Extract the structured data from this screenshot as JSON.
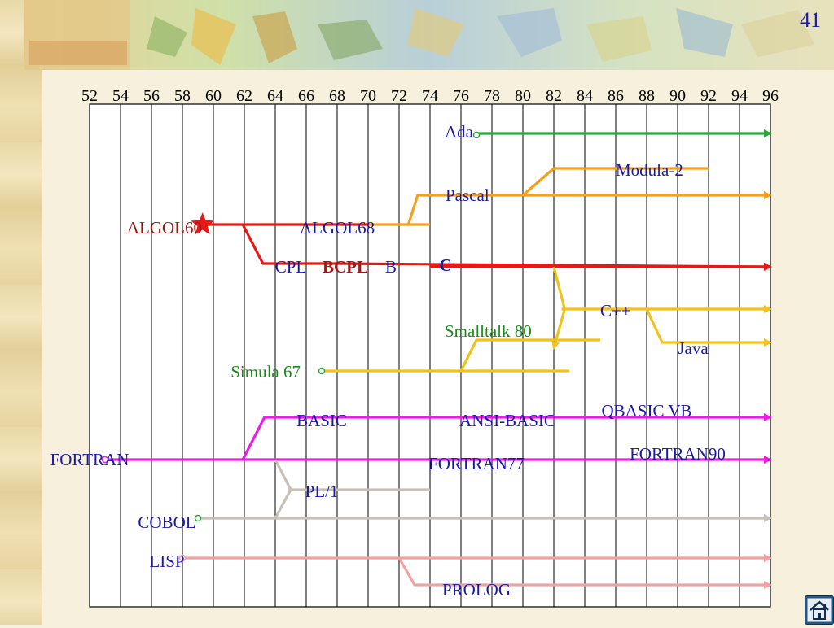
{
  "slide": {
    "page_number": "41"
  },
  "years": [
    "52",
    "54",
    "56",
    "58",
    "60",
    "62",
    "64",
    "66",
    "68",
    "70",
    "72",
    "74",
    "76",
    "78",
    "80",
    "82",
    "84",
    "86",
    "88",
    "90",
    "92",
    "94",
    "96"
  ],
  "colors": {
    "green": "#2aa63a",
    "orange": "#f5a01a",
    "red": "#e81818",
    "yellow": "#f2c21a",
    "magenta": "#f01ae8",
    "gray": "#c8c0b4",
    "pink": "#f4a0a0",
    "label_blue": "#1a1aaa",
    "label_darkred": "#a01818",
    "label_green": "#1a8a1a",
    "grid": "#000000"
  },
  "languages": [
    {
      "id": "ada",
      "text": "Ada",
      "color": "label_blue",
      "year": 77,
      "row": 164,
      "anchor": "end",
      "dx": -4,
      "dy": -2
    },
    {
      "id": "modula-2",
      "text": "Modula-2",
      "color": "label_blue",
      "year": 86,
      "row": 207,
      "anchor": "start",
      "dx": 0,
      "dy": 2
    },
    {
      "id": "pascal",
      "text": "Pascal",
      "color": "label_blue",
      "year": 75,
      "row": 240,
      "anchor": "start",
      "dx": 0,
      "dy": 0
    },
    {
      "id": "algol60",
      "text": "ALGOL60",
      "color": "label_darkred",
      "year": 58,
      "row": 278,
      "anchor": "end",
      "dx": 24,
      "dy": 2
    },
    {
      "id": "algol68",
      "text": "ALGOL68",
      "color": "label_blue",
      "year": 68,
      "row": 278,
      "anchor": "middle",
      "dx": 0,
      "dy": 2
    },
    {
      "id": "cpl",
      "text": "CPL",
      "color": "label_blue",
      "year": 65,
      "row": 328,
      "anchor": "middle",
      "dx": 0,
      "dy": 0
    },
    {
      "id": "bcpl",
      "text": "BCPL",
      "color": "label_darkred",
      "year": 68,
      "row": 328,
      "anchor": "middle",
      "dx": 10,
      "dy": 0,
      "bold": true
    },
    {
      "id": "b",
      "text": "B",
      "color": "label_blue",
      "year": 72,
      "row": 328,
      "anchor": "middle",
      "dx": -10,
      "dy": 0
    },
    {
      "id": "c",
      "text": "C",
      "color": "label_blue",
      "year": 75,
      "row": 328,
      "anchor": "middle",
      "dx": 0,
      "dy": -2,
      "bold": true
    },
    {
      "id": "cpp",
      "text": "C++",
      "color": "label_blue",
      "year": 85,
      "row": 380,
      "anchor": "start",
      "dx": 0,
      "dy": 2
    },
    {
      "id": "smalltalk80",
      "text": "Smalltalk 80",
      "color": "label_green",
      "year": 76,
      "row": 405,
      "anchor": "start",
      "dx": -20,
      "dy": 2
    },
    {
      "id": "java",
      "text": "Java",
      "color": "label_blue",
      "year": 91,
      "row": 428,
      "anchor": "middle",
      "dx": 0,
      "dy": 0
    },
    {
      "id": "simula67",
      "text": "Simula 67",
      "color": "label_green",
      "year": 65,
      "row": 455,
      "anchor": "end",
      "dx": 12,
      "dy": 2
    },
    {
      "id": "basic",
      "text": "BASIC",
      "color": "label_blue",
      "year": 67,
      "row": 515,
      "anchor": "middle",
      "dx": 0,
      "dy": 2
    },
    {
      "id": "ansi-basic",
      "text": "ANSI-BASIC",
      "color": "label_blue",
      "year": 79,
      "row": 515,
      "anchor": "middle",
      "dx": 0,
      "dy": 2
    },
    {
      "id": "qbasic-vb",
      "text": "QBASIC  VB",
      "color": "label_blue",
      "year": 88,
      "row": 503,
      "anchor": "middle",
      "dx": 0,
      "dy": 2
    },
    {
      "id": "fortran",
      "text": "FORTRAN",
      "color": "label_blue",
      "year": 52,
      "row": 565,
      "anchor": "middle",
      "dx": 0,
      "dy": 0
    },
    {
      "id": "fortran77",
      "text": "FORTRAN77",
      "color": "label_blue",
      "year": 77,
      "row": 568,
      "anchor": "middle",
      "dx": 0,
      "dy": 2
    },
    {
      "id": "fortran90",
      "text": "FORTRAN90",
      "color": "label_blue",
      "year": 90,
      "row": 556,
      "anchor": "middle",
      "dx": 0,
      "dy": 2
    },
    {
      "id": "pl1",
      "text": "PL/1",
      "color": "label_blue",
      "year": 67,
      "row": 602,
      "anchor": "middle",
      "dx": 0,
      "dy": 2
    },
    {
      "id": "cobol",
      "text": "COBOL",
      "color": "label_blue",
      "year": 57,
      "row": 640,
      "anchor": "middle",
      "dx": 0,
      "dy": 2
    },
    {
      "id": "lisp",
      "text": "LISP",
      "color": "label_blue",
      "year": 57,
      "row": 688,
      "anchor": "middle",
      "dx": 0,
      "dy": 2
    },
    {
      "id": "prolog",
      "text": "PROLOG",
      "color": "label_blue",
      "year": 77,
      "row": 723,
      "anchor": "middle",
      "dx": 0,
      "dy": 2
    }
  ],
  "lineages": [
    {
      "name": "ada-line",
      "color": "green",
      "arrow": true,
      "points": [
        [
          77,
          164
        ],
        [
          96,
          164
        ]
      ]
    },
    {
      "name": "pascal-line",
      "color": "orange",
      "arrow": true,
      "points": [
        [
          70,
          276
        ],
        [
          72.6,
          276
        ],
        [
          73.2,
          240
        ],
        [
          96,
          240
        ]
      ]
    },
    {
      "name": "pascal-line-stub",
      "color": "orange",
      "arrow": false,
      "points": [
        [
          72.6,
          276
        ],
        [
          74,
          276
        ]
      ]
    },
    {
      "name": "modula-2-line",
      "color": "orange",
      "arrow": false,
      "points": [
        [
          80,
          240
        ],
        [
          82,
          207
        ],
        [
          92,
          207
        ]
      ]
    },
    {
      "name": "algol-line",
      "color": "red",
      "arrow": false,
      "points": [
        [
          59,
          276
        ],
        [
          70,
          276
        ]
      ]
    },
    {
      "name": "c-line",
      "color": "red",
      "arrow": true,
      "points": [
        [
          61.9,
          276
        ],
        [
          63.2,
          324
        ],
        [
          68,
          324
        ],
        [
          96,
          328
        ]
      ]
    },
    {
      "name": "c-line-tail",
      "color": "red",
      "arrow": true,
      "points": [
        [
          74,
          328
        ],
        [
          96,
          328
        ]
      ]
    },
    {
      "name": "cpp-line",
      "color": "yellow",
      "arrow": true,
      "points": [
        [
          82,
          328
        ],
        [
          82.7,
          380
        ],
        [
          82,
          428
        ]
      ]
    },
    {
      "name": "cpp-main",
      "color": "yellow",
      "arrow": true,
      "points": [
        [
          82.5,
          380
        ],
        [
          96,
          380
        ]
      ]
    },
    {
      "name": "java-line",
      "color": "yellow",
      "arrow": true,
      "points": [
        [
          88,
          380
        ],
        [
          89,
          421
        ],
        [
          96,
          421
        ]
      ]
    },
    {
      "name": "smalltalk-line",
      "color": "yellow",
      "arrow": false,
      "points": [
        [
          76,
          456
        ],
        [
          77,
          418
        ],
        [
          85,
          418
        ]
      ]
    },
    {
      "name": "simula-line",
      "color": "yellow",
      "arrow": false,
      "points": [
        [
          67,
          456
        ],
        [
          83,
          456
        ]
      ]
    },
    {
      "name": "basic-line",
      "color": "magenta",
      "arrow": true,
      "points": [
        [
          61.9,
          565
        ],
        [
          63.3,
          513
        ],
        [
          96,
          513
        ]
      ]
    },
    {
      "name": "fortran-line",
      "color": "magenta",
      "arrow": true,
      "points": [
        [
          53,
          565
        ],
        [
          96,
          565
        ]
      ]
    },
    {
      "name": "pl1-line",
      "color": "gray",
      "arrow": false,
      "points": [
        [
          64,
          565
        ],
        [
          65,
          602
        ],
        [
          64,
          637
        ]
      ]
    },
    {
      "name": "pl1-main",
      "color": "gray",
      "arrow": false,
      "points": [
        [
          64.8,
          602
        ],
        [
          74,
          602
        ]
      ]
    },
    {
      "name": "cobol-line",
      "color": "gray",
      "arrow": true,
      "points": [
        [
          59,
          637
        ],
        [
          96,
          637
        ]
      ]
    },
    {
      "name": "lisp-line",
      "color": "pink",
      "arrow": true,
      "points": [
        [
          58,
          686
        ],
        [
          96,
          686
        ]
      ]
    },
    {
      "name": "prolog-line",
      "color": "pink",
      "arrow": true,
      "points": [
        [
          72,
          686
        ],
        [
          73,
          719
        ],
        [
          96,
          719
        ]
      ]
    }
  ],
  "markers": {
    "star_year": 59.3,
    "star_row": 276,
    "dots": [
      {
        "name": "ada-origin-dot",
        "year": 77,
        "row": 166,
        "color": "green"
      },
      {
        "name": "simula-origin-dot",
        "year": 67,
        "row": 456,
        "color": "green"
      },
      {
        "name": "cobol-origin-dot",
        "year": 59,
        "row": 637,
        "color": "green"
      },
      {
        "name": "lisp-origin-dot",
        "year": 58,
        "row": 686,
        "color": "pink"
      },
      {
        "name": "fortran-origin-dot",
        "year": 53,
        "row": 565,
        "color": "magenta"
      }
    ]
  }
}
